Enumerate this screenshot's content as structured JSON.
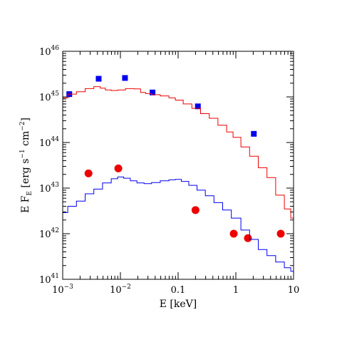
{
  "chart_data": {
    "type": "scatter",
    "x_scale": "log",
    "y_scale": "log",
    "xlim": [
      0.001,
      10
    ],
    "ylim": [
      1e+41,
      1e+46
    ],
    "grid": false,
    "xlabel": {
      "base": "E [keV]"
    },
    "ylabel": {
      "base": "E F",
      "sub": "E",
      "mid": " [erg s",
      "sup1": "−1",
      "mid2": " cm",
      "sup2": "−2",
      "end": "]"
    },
    "x_ticks": [
      {
        "value": 0.001,
        "label_base": "10",
        "label_sup": "−3"
      },
      {
        "value": 0.01,
        "label_base": "10",
        "label_sup": "−2"
      },
      {
        "value": 0.1,
        "label": "0.1"
      },
      {
        "value": 1,
        "label": "1"
      },
      {
        "value": 10,
        "label": "10"
      }
    ],
    "y_ticks": [
      {
        "value": 1e+41,
        "label_base": "10",
        "label_sup": "41"
      },
      {
        "value": 1e+42,
        "label_base": "10",
        "label_sup": "42"
      },
      {
        "value": 1e+43,
        "label_base": "10",
        "label_sup": "43"
      },
      {
        "value": 1e+44,
        "label_base": "10",
        "label_sup": "44"
      },
      {
        "value": 1e+45,
        "label_base": "10",
        "label_sup": "45"
      },
      {
        "value": 1e+46,
        "label_base": "10",
        "label_sup": "46"
      }
    ],
    "series": [
      {
        "kind": "points",
        "marker": "square",
        "color": "#0000ee",
        "points": [
          [
            0.0013,
            1.15e+45
          ],
          [
            0.0042,
            2.5e+45
          ],
          [
            0.012,
            2.6e+45
          ],
          [
            0.036,
            1.25e+45
          ],
          [
            0.22,
            6.2e+44
          ],
          [
            2.05,
            1.55e+44
          ]
        ]
      },
      {
        "kind": "points",
        "marker": "circle",
        "color": "#ee0000",
        "points": [
          [
            0.0028,
            2.1e+43
          ],
          [
            0.0092,
            2.7e+43
          ],
          [
            0.2,
            3.3e+42
          ],
          [
            0.92,
            1e+42
          ],
          [
            1.62,
            8e+41
          ],
          [
            6.0,
            1e+42
          ]
        ]
      },
      {
        "kind": "step-line",
        "color": "#ee0000",
        "points": [
          [
            0.001,
            9.5e+44
          ],
          [
            0.0015,
            1.15e+45
          ],
          [
            0.002,
            1.3e+45
          ],
          [
            0.003,
            1.52e+45
          ],
          [
            0.004,
            1.68e+45
          ],
          [
            0.005,
            1.55e+45
          ],
          [
            0.006,
            1.42e+45
          ],
          [
            0.008,
            1.38e+45
          ],
          [
            0.01,
            1.42e+45
          ],
          [
            0.015,
            1.52e+45
          ],
          [
            0.02,
            1.5e+45
          ],
          [
            0.025,
            1.25e+45
          ],
          [
            0.03,
            1.18e+45
          ],
          [
            0.04,
            1.12e+45
          ],
          [
            0.06,
            1.05e+45
          ],
          [
            0.08,
            9.5e+44
          ],
          [
            0.1,
            8.5e+44
          ],
          [
            0.15,
            7e+44
          ],
          [
            0.2,
            5.6e+44
          ],
          [
            0.3,
            4.3e+44
          ],
          [
            0.4,
            3.4e+44
          ],
          [
            0.6,
            2.4e+44
          ],
          [
            0.8,
            1.7e+44
          ],
          [
            1,
            1.3e+44
          ],
          [
            1.5,
            8e+43
          ],
          [
            2,
            5e+43
          ],
          [
            3,
            2.8e+43
          ],
          [
            4,
            1.7e+43
          ],
          [
            6,
            7e+42
          ],
          [
            8,
            3.5e+42
          ],
          [
            10,
            2.2e+42
          ]
        ]
      },
      {
        "kind": "step-line",
        "color": "#0000ee",
        "points": [
          [
            0.001,
            2.9e+42
          ],
          [
            0.0015,
            4e+42
          ],
          [
            0.002,
            5.2e+42
          ],
          [
            0.003,
            7.5e+42
          ],
          [
            0.004,
            9.5e+42
          ],
          [
            0.006,
            1.3e+43
          ],
          [
            0.008,
            1.6e+43
          ],
          [
            0.01,
            1.75e+43
          ],
          [
            0.013,
            1.65e+43
          ],
          [
            0.017,
            1.45e+43
          ],
          [
            0.022,
            1.3e+43
          ],
          [
            0.03,
            1.25e+43
          ],
          [
            0.04,
            1.32e+43
          ],
          [
            0.06,
            1.45e+43
          ],
          [
            0.08,
            1.52e+43
          ],
          [
            0.1,
            1.55e+43
          ],
          [
            0.13,
            1.4e+43
          ],
          [
            0.18,
            1.15e+43
          ],
          [
            0.25,
            9e+42
          ],
          [
            0.35,
            6.8e+42
          ],
          [
            0.5,
            4.8e+42
          ],
          [
            0.7,
            3.3e+42
          ],
          [
            1,
            2.2e+42
          ],
          [
            1.5,
            1.2e+42
          ],
          [
            2,
            7.5e+41
          ],
          [
            3,
            4.5e+41
          ],
          [
            4,
            3.3e+41
          ],
          [
            6,
            2.4e+41
          ],
          [
            8,
            1.8e+41
          ],
          [
            10,
            1.5e+41
          ]
        ]
      }
    ]
  }
}
